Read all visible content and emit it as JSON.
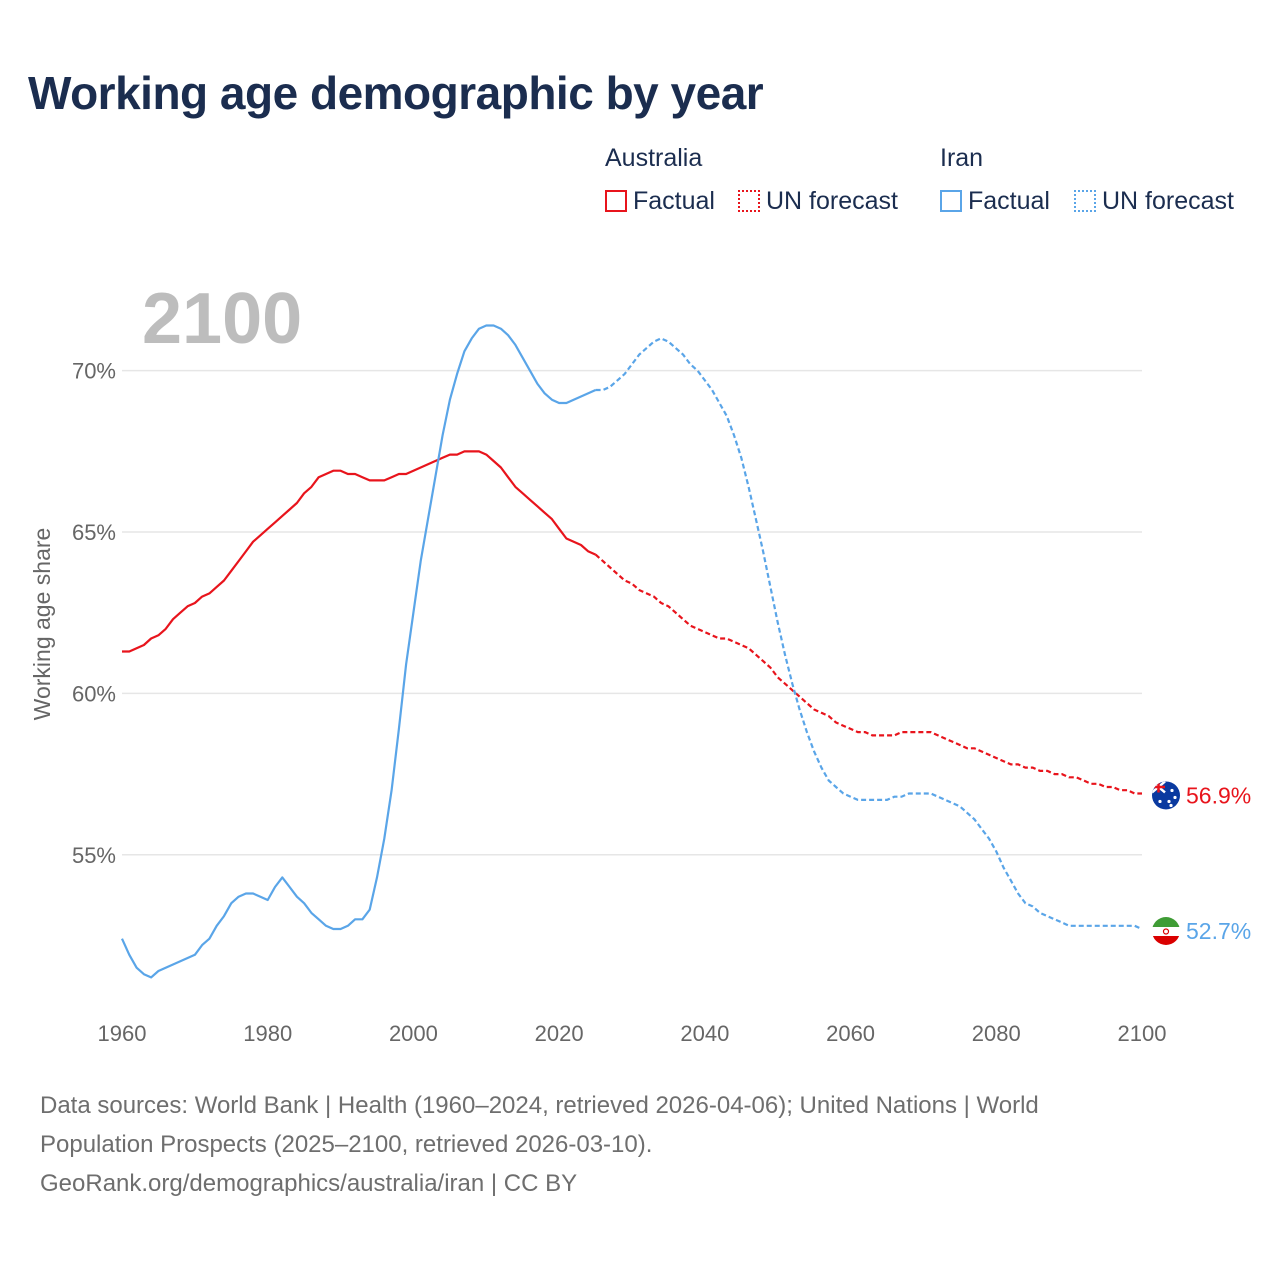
{
  "title": "Working age demographic by year",
  "legend": {
    "groups": [
      {
        "name": "Australia",
        "color": "#e8141c",
        "items": [
          "Factual",
          "UN forecast"
        ]
      },
      {
        "name": "Iran",
        "color": "#5aa5e8",
        "items": [
          "Factual",
          "UN forecast"
        ]
      }
    ]
  },
  "year_label": "2100",
  "footer": {
    "line1": "Data sources: World Bank | Health (1960–2024, retrieved 2026-04-06); United Nations | World",
    "line2": "Population Prospects (2025–2100, retrieved 2026-03-10).",
    "line3": "GeoRank.org/demographics/australia/iran | CC BY"
  },
  "chart_data": {
    "type": "line",
    "title": "Working age demographic by year",
    "xlabel": "",
    "ylabel": "Working age share",
    "xlim": [
      1960,
      2100
    ],
    "ylim": [
      50.5,
      72.5
    ],
    "x_ticks": [
      1960,
      1980,
      2000,
      2020,
      2040,
      2060,
      2080,
      2100
    ],
    "x_tick_labels": [
      "1960",
      "1980",
      "2000",
      "2020",
      "2040",
      "2060",
      "2080",
      "2100"
    ],
    "y_ticks": [
      55,
      60,
      65,
      70
    ],
    "y_tick_labels": [
      "55%",
      "60%",
      "65%",
      "70%"
    ],
    "grid": true,
    "legend_position": "top-right",
    "series": [
      {
        "name": "Australia",
        "color": "#e8141c",
        "end_label": "56.9%",
        "flag": "australia-flag",
        "factual": [
          [
            1960,
            61.3
          ],
          [
            1961,
            61.3
          ],
          [
            1962,
            61.4
          ],
          [
            1963,
            61.5
          ],
          [
            1964,
            61.7
          ],
          [
            1965,
            61.8
          ],
          [
            1966,
            62.0
          ],
          [
            1967,
            62.3
          ],
          [
            1968,
            62.5
          ],
          [
            1969,
            62.7
          ],
          [
            1970,
            62.8
          ],
          [
            1971,
            63.0
          ],
          [
            1972,
            63.1
          ],
          [
            1973,
            63.3
          ],
          [
            1974,
            63.5
          ],
          [
            1975,
            63.8
          ],
          [
            1976,
            64.1
          ],
          [
            1977,
            64.4
          ],
          [
            1978,
            64.7
          ],
          [
            1979,
            64.9
          ],
          [
            1980,
            65.1
          ],
          [
            1981,
            65.3
          ],
          [
            1982,
            65.5
          ],
          [
            1983,
            65.7
          ],
          [
            1984,
            65.9
          ],
          [
            1985,
            66.2
          ],
          [
            1986,
            66.4
          ],
          [
            1987,
            66.7
          ],
          [
            1988,
            66.8
          ],
          [
            1989,
            66.9
          ],
          [
            1990,
            66.9
          ],
          [
            1991,
            66.8
          ],
          [
            1992,
            66.8
          ],
          [
            1993,
            66.7
          ],
          [
            1994,
            66.6
          ],
          [
            1995,
            66.6
          ],
          [
            1996,
            66.6
          ],
          [
            1997,
            66.7
          ],
          [
            1998,
            66.8
          ],
          [
            1999,
            66.8
          ],
          [
            2000,
            66.9
          ],
          [
            2001,
            67.0
          ],
          [
            2002,
            67.1
          ],
          [
            2003,
            67.2
          ],
          [
            2004,
            67.3
          ],
          [
            2005,
            67.4
          ],
          [
            2006,
            67.4
          ],
          [
            2007,
            67.5
          ],
          [
            2008,
            67.5
          ],
          [
            2009,
            67.5
          ],
          [
            2010,
            67.4
          ],
          [
            2011,
            67.2
          ],
          [
            2012,
            67.0
          ],
          [
            2013,
            66.7
          ],
          [
            2014,
            66.4
          ],
          [
            2015,
            66.2
          ],
          [
            2016,
            66.0
          ],
          [
            2017,
            65.8
          ],
          [
            2018,
            65.6
          ],
          [
            2019,
            65.4
          ],
          [
            2020,
            65.1
          ],
          [
            2021,
            64.8
          ],
          [
            2022,
            64.7
          ],
          [
            2023,
            64.6
          ],
          [
            2024,
            64.4
          ],
          [
            2025,
            64.3
          ]
        ],
        "forecast": [
          [
            2025,
            64.3
          ],
          [
            2026,
            64.1
          ],
          [
            2027,
            63.9
          ],
          [
            2028,
            63.7
          ],
          [
            2029,
            63.5
          ],
          [
            2030,
            63.4
          ],
          [
            2031,
            63.2
          ],
          [
            2032,
            63.1
          ],
          [
            2033,
            63.0
          ],
          [
            2034,
            62.8
          ],
          [
            2035,
            62.7
          ],
          [
            2036,
            62.5
          ],
          [
            2037,
            62.3
          ],
          [
            2038,
            62.1
          ],
          [
            2039,
            62.0
          ],
          [
            2040,
            61.9
          ],
          [
            2041,
            61.8
          ],
          [
            2042,
            61.7
          ],
          [
            2043,
            61.7
          ],
          [
            2044,
            61.6
          ],
          [
            2045,
            61.5
          ],
          [
            2046,
            61.4
          ],
          [
            2047,
            61.2
          ],
          [
            2048,
            61.0
          ],
          [
            2049,
            60.8
          ],
          [
            2050,
            60.5
          ],
          [
            2051,
            60.3
          ],
          [
            2052,
            60.1
          ],
          [
            2053,
            59.9
          ],
          [
            2054,
            59.7
          ],
          [
            2055,
            59.5
          ],
          [
            2056,
            59.4
          ],
          [
            2057,
            59.3
          ],
          [
            2058,
            59.1
          ],
          [
            2059,
            59.0
          ],
          [
            2060,
            58.9
          ],
          [
            2061,
            58.8
          ],
          [
            2062,
            58.8
          ],
          [
            2063,
            58.7
          ],
          [
            2064,
            58.7
          ],
          [
            2065,
            58.7
          ],
          [
            2066,
            58.7
          ],
          [
            2067,
            58.8
          ],
          [
            2068,
            58.8
          ],
          [
            2069,
            58.8
          ],
          [
            2070,
            58.8
          ],
          [
            2071,
            58.8
          ],
          [
            2072,
            58.7
          ],
          [
            2073,
            58.6
          ],
          [
            2074,
            58.5
          ],
          [
            2075,
            58.4
          ],
          [
            2076,
            58.3
          ],
          [
            2077,
            58.3
          ],
          [
            2078,
            58.2
          ],
          [
            2079,
            58.1
          ],
          [
            2080,
            58.0
          ],
          [
            2081,
            57.9
          ],
          [
            2082,
            57.8
          ],
          [
            2083,
            57.8
          ],
          [
            2084,
            57.7
          ],
          [
            2085,
            57.7
          ],
          [
            2086,
            57.6
          ],
          [
            2087,
            57.6
          ],
          [
            2088,
            57.5
          ],
          [
            2089,
            57.5
          ],
          [
            2090,
            57.4
          ],
          [
            2091,
            57.4
          ],
          [
            2092,
            57.3
          ],
          [
            2093,
            57.2
          ],
          [
            2094,
            57.2
          ],
          [
            2095,
            57.1
          ],
          [
            2096,
            57.1
          ],
          [
            2097,
            57.0
          ],
          [
            2098,
            57.0
          ],
          [
            2099,
            56.9
          ],
          [
            2100,
            56.9
          ]
        ]
      },
      {
        "name": "Iran",
        "color": "#5aa5e8",
        "end_label": "52.7%",
        "flag": "iran-flag",
        "factual": [
          [
            1960,
            52.4
          ],
          [
            1961,
            51.9
          ],
          [
            1962,
            51.5
          ],
          [
            1963,
            51.3
          ],
          [
            1964,
            51.2
          ],
          [
            1965,
            51.4
          ],
          [
            1966,
            51.5
          ],
          [
            1967,
            51.6
          ],
          [
            1968,
            51.7
          ],
          [
            1969,
            51.8
          ],
          [
            1970,
            51.9
          ],
          [
            1971,
            52.2
          ],
          [
            1972,
            52.4
          ],
          [
            1973,
            52.8
          ],
          [
            1974,
            53.1
          ],
          [
            1975,
            53.5
          ],
          [
            1976,
            53.7
          ],
          [
            1977,
            53.8
          ],
          [
            1978,
            53.8
          ],
          [
            1979,
            53.7
          ],
          [
            1980,
            53.6
          ],
          [
            1981,
            54.0
          ],
          [
            1982,
            54.3
          ],
          [
            1983,
            54.0
          ],
          [
            1984,
            53.7
          ],
          [
            1985,
            53.5
          ],
          [
            1986,
            53.2
          ],
          [
            1987,
            53.0
          ],
          [
            1988,
            52.8
          ],
          [
            1989,
            52.7
          ],
          [
            1990,
            52.7
          ],
          [
            1991,
            52.8
          ],
          [
            1992,
            53.0
          ],
          [
            1993,
            53.0
          ],
          [
            1994,
            53.3
          ],
          [
            1995,
            54.3
          ],
          [
            1996,
            55.5
          ],
          [
            1997,
            57.0
          ],
          [
            1998,
            58.9
          ],
          [
            1999,
            60.9
          ],
          [
            2000,
            62.5
          ],
          [
            2001,
            64.1
          ],
          [
            2002,
            65.4
          ],
          [
            2003,
            66.7
          ],
          [
            2004,
            68.0
          ],
          [
            2005,
            69.1
          ],
          [
            2006,
            69.9
          ],
          [
            2007,
            70.6
          ],
          [
            2008,
            71.0
          ],
          [
            2009,
            71.3
          ],
          [
            2010,
            71.4
          ],
          [
            2011,
            71.4
          ],
          [
            2012,
            71.3
          ],
          [
            2013,
            71.1
          ],
          [
            2014,
            70.8
          ],
          [
            2015,
            70.4
          ],
          [
            2016,
            70.0
          ],
          [
            2017,
            69.6
          ],
          [
            2018,
            69.3
          ],
          [
            2019,
            69.1
          ],
          [
            2020,
            69.0
          ],
          [
            2021,
            69.0
          ],
          [
            2022,
            69.1
          ],
          [
            2023,
            69.2
          ],
          [
            2024,
            69.3
          ],
          [
            2025,
            69.4
          ]
        ],
        "forecast": [
          [
            2025,
            69.4
          ],
          [
            2026,
            69.4
          ],
          [
            2027,
            69.5
          ],
          [
            2028,
            69.7
          ],
          [
            2029,
            69.9
          ],
          [
            2030,
            70.2
          ],
          [
            2031,
            70.5
          ],
          [
            2032,
            70.7
          ],
          [
            2033,
            70.9
          ],
          [
            2034,
            71.0
          ],
          [
            2035,
            70.9
          ],
          [
            2036,
            70.7
          ],
          [
            2037,
            70.5
          ],
          [
            2038,
            70.2
          ],
          [
            2039,
            70.0
          ],
          [
            2040,
            69.7
          ],
          [
            2041,
            69.4
          ],
          [
            2042,
            69.0
          ],
          [
            2043,
            68.6
          ],
          [
            2044,
            68.0
          ],
          [
            2045,
            67.3
          ],
          [
            2046,
            66.4
          ],
          [
            2047,
            65.4
          ],
          [
            2048,
            64.4
          ],
          [
            2049,
            63.3
          ],
          [
            2050,
            62.2
          ],
          [
            2051,
            61.2
          ],
          [
            2052,
            60.3
          ],
          [
            2053,
            59.5
          ],
          [
            2054,
            58.8
          ],
          [
            2055,
            58.2
          ],
          [
            2056,
            57.7
          ],
          [
            2057,
            57.3
          ],
          [
            2058,
            57.1
          ],
          [
            2059,
            56.9
          ],
          [
            2060,
            56.8
          ],
          [
            2061,
            56.7
          ],
          [
            2062,
            56.7
          ],
          [
            2063,
            56.7
          ],
          [
            2064,
            56.7
          ],
          [
            2065,
            56.7
          ],
          [
            2066,
            56.8
          ],
          [
            2067,
            56.8
          ],
          [
            2068,
            56.9
          ],
          [
            2069,
            56.9
          ],
          [
            2070,
            56.9
          ],
          [
            2071,
            56.9
          ],
          [
            2072,
            56.8
          ],
          [
            2073,
            56.7
          ],
          [
            2074,
            56.6
          ],
          [
            2075,
            56.5
          ],
          [
            2076,
            56.3
          ],
          [
            2077,
            56.1
          ],
          [
            2078,
            55.8
          ],
          [
            2079,
            55.5
          ],
          [
            2080,
            55.1
          ],
          [
            2081,
            54.6
          ],
          [
            2082,
            54.2
          ],
          [
            2083,
            53.8
          ],
          [
            2084,
            53.5
          ],
          [
            2085,
            53.4
          ],
          [
            2086,
            53.2
          ],
          [
            2087,
            53.1
          ],
          [
            2088,
            53.0
          ],
          [
            2089,
            52.9
          ],
          [
            2090,
            52.8
          ],
          [
            2091,
            52.8
          ],
          [
            2092,
            52.8
          ],
          [
            2093,
            52.8
          ],
          [
            2094,
            52.8
          ],
          [
            2095,
            52.8
          ],
          [
            2096,
            52.8
          ],
          [
            2097,
            52.8
          ],
          [
            2098,
            52.8
          ],
          [
            2099,
            52.8
          ],
          [
            2100,
            52.7
          ]
        ]
      }
    ]
  }
}
